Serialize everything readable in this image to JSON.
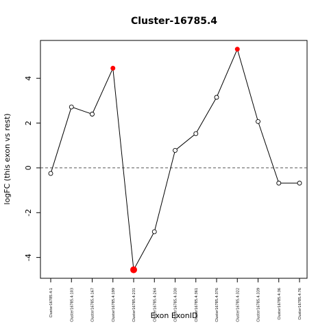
{
  "chart_data": {
    "type": "line",
    "title": "Cluster-16785.4",
    "xlabel": "Exon ExonID",
    "ylabel": "logFC (this exon vs rest)",
    "categories": [
      "Cluster16785.4:1",
      "Cluster16785.4:103",
      "Cluster16785.4:167",
      "Cluster16785.4:199",
      "Cluster16785.4:231",
      "Cluster16785.4:264",
      "Cluster16785.4:330",
      "Cluster16785.4:361",
      "Cluster16785.4:376",
      "Cluster16785.4:322",
      "Cluster16785.4:339",
      "Cluster16785.4:36",
      "Cluster16785.4:76"
    ],
    "values": [
      -0.25,
      2.72,
      2.4,
      4.45,
      -4.55,
      -2.85,
      0.78,
      1.53,
      3.15,
      5.3,
      2.07,
      -0.68,
      -0.68
    ],
    "highlighted": [
      false,
      false,
      false,
      true,
      true,
      false,
      false,
      false,
      false,
      true,
      false,
      false,
      false
    ],
    "highlight_large": [
      false,
      false,
      false,
      false,
      true,
      false,
      false,
      false,
      false,
      false,
      false,
      false,
      false
    ],
    "yticks": [
      -4,
      -2,
      0,
      2,
      4
    ],
    "ylim": [
      -4.93,
      5.69
    ],
    "reference_line": 0,
    "colors": {
      "highlight": "#ff0000",
      "line": "#000000",
      "reference": "#555555"
    }
  }
}
